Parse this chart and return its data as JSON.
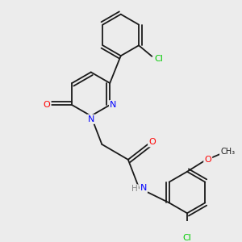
{
  "bg_color": "#ececec",
  "bond_color": "#1a1a1a",
  "atom_colors": {
    "N": "#0000ff",
    "O": "#ff0000",
    "Cl": "#00cc00",
    "C": "#1a1a1a",
    "H": "#888888"
  },
  "font_size_atom": 8.0,
  "line_width": 1.3,
  "fig_size": [
    3.0,
    3.0
  ],
  "dpi": 100
}
